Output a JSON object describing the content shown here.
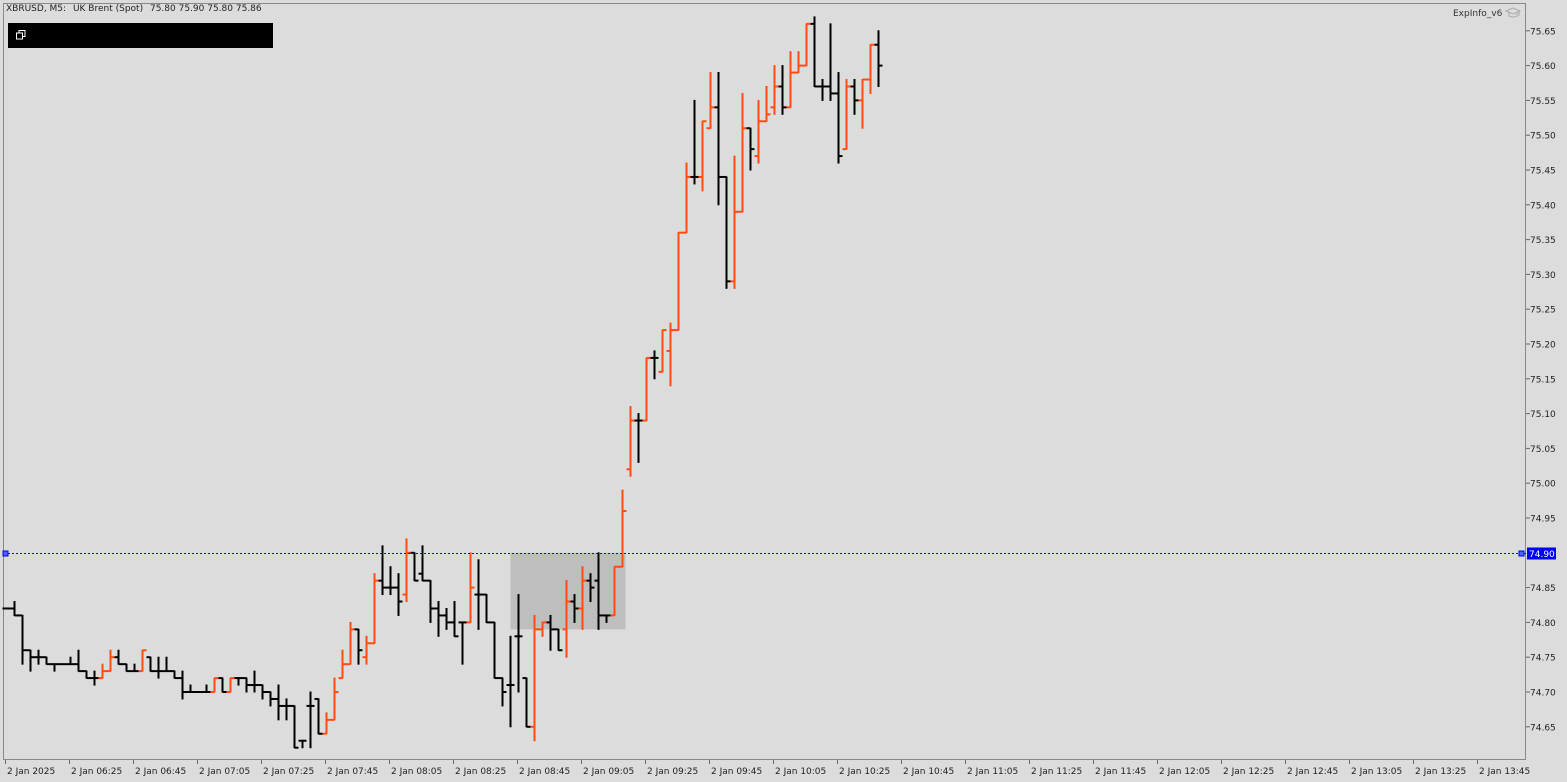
{
  "header": {
    "symbol": "XBRUSD, M5:",
    "description": "UK Brent (Spot)",
    "ohlc": "75.80 75.90 75.80 75.86"
  },
  "indicator": {
    "label": "ExpInfo_v6",
    "icon": "graduation-cap-icon"
  },
  "panel": {
    "icon": "restore-window-icon",
    "background": "#000000"
  },
  "colors": {
    "up": "#ff4a12",
    "down": "#000000",
    "level_line": "#0000ff",
    "level_label_bg": "#0000ff",
    "zone": "#bebebe",
    "background": "#dcdcdc"
  },
  "level": {
    "price": 74.9,
    "label": "74.90"
  },
  "zone": {
    "from_bar": 63,
    "to_bar": 77,
    "top": 74.9,
    "bottom": 74.79
  },
  "chart_data": {
    "type": "ohlc-bar",
    "symbol": "XBRUSD",
    "timeframe": "M5",
    "ylim": [
      74.605,
      75.695
    ],
    "y_ticks": [
      "74.65",
      "74.70",
      "74.75",
      "74.80",
      "74.85",
      "74.90",
      "74.95",
      "75.00",
      "75.05",
      "75.10",
      "75.15",
      "75.20",
      "75.25",
      "75.30",
      "75.35",
      "75.40",
      "75.45",
      "75.50",
      "75.55",
      "75.60",
      "75.65"
    ],
    "x_ticks": [
      "2 Jan 2025",
      "2 Jan 06:25",
      "2 Jan 06:45",
      "2 Jan 07:05",
      "2 Jan 07:25",
      "2 Jan 07:45",
      "2 Jan 08:05",
      "2 Jan 08:25",
      "2 Jan 08:45",
      "2 Jan 09:05",
      "2 Jan 09:25",
      "2 Jan 09:45",
      "2 Jan 10:05",
      "2 Jan 10:25",
      "2 Jan 10:45",
      "2 Jan 11:05",
      "2 Jan 11:25",
      "2 Jan 11:45",
      "2 Jan 12:05",
      "2 Jan 12:25",
      "2 Jan 12:45",
      "2 Jan 13:05",
      "2 Jan 13:25",
      "2 Jan 13:45"
    ],
    "bars": [
      [
        74.82,
        74.82,
        74.82,
        74.82
      ],
      [
        74.82,
        74.83,
        74.81,
        74.81
      ],
      [
        74.81,
        74.81,
        74.74,
        74.76
      ],
      [
        74.76,
        74.76,
        74.73,
        74.75
      ],
      [
        74.75,
        74.76,
        74.74,
        74.75
      ],
      [
        74.75,
        74.75,
        74.74,
        74.74
      ],
      [
        74.74,
        74.74,
        74.73,
        74.74
      ],
      [
        74.74,
        74.74,
        74.74,
        74.74
      ],
      [
        74.74,
        74.75,
        74.74,
        74.74
      ],
      [
        74.74,
        74.76,
        74.73,
        74.73
      ],
      [
        74.73,
        74.73,
        74.72,
        74.72
      ],
      [
        74.72,
        74.73,
        74.71,
        74.72
      ],
      [
        74.72,
        74.74,
        74.72,
        74.73
      ],
      [
        74.73,
        74.76,
        74.73,
        74.75
      ],
      [
        74.75,
        74.76,
        74.74,
        74.74
      ],
      [
        74.74,
        74.74,
        74.73,
        74.73
      ],
      [
        74.73,
        74.74,
        74.73,
        74.73
      ],
      [
        74.73,
        74.76,
        74.73,
        74.76
      ],
      [
        74.75,
        74.75,
        74.73,
        74.73
      ],
      [
        74.73,
        74.75,
        74.72,
        74.73
      ],
      [
        74.73,
        74.75,
        74.73,
        74.73
      ],
      [
        74.73,
        74.73,
        74.72,
        74.72
      ],
      [
        74.72,
        74.73,
        74.69,
        74.7
      ],
      [
        74.7,
        74.71,
        74.7,
        74.7
      ],
      [
        74.7,
        74.7,
        74.7,
        74.7
      ],
      [
        74.7,
        74.71,
        74.7,
        74.7
      ],
      [
        74.7,
        74.72,
        74.7,
        74.72
      ],
      [
        74.72,
        74.72,
        74.7,
        74.7
      ],
      [
        74.7,
        74.72,
        74.7,
        74.72
      ],
      [
        74.72,
        74.72,
        74.71,
        74.72
      ],
      [
        74.72,
        74.72,
        74.7,
        74.71
      ],
      [
        74.71,
        74.73,
        74.7,
        74.71
      ],
      [
        74.71,
        74.71,
        74.69,
        74.7
      ],
      [
        74.7,
        74.7,
        74.68,
        74.69
      ],
      [
        74.69,
        74.71,
        74.66,
        74.68
      ],
      [
        74.68,
        74.69,
        74.66,
        74.68
      ],
      [
        74.68,
        74.68,
        74.62,
        74.62
      ],
      [
        74.63,
        74.63,
        74.62,
        74.63
      ],
      [
        74.68,
        74.7,
        74.62,
        74.68
      ],
      [
        74.69,
        74.69,
        74.64,
        74.64
      ],
      [
        74.64,
        74.67,
        74.64,
        74.66
      ],
      [
        74.66,
        74.72,
        74.66,
        74.7
      ],
      [
        74.72,
        74.76,
        74.72,
        74.74
      ],
      [
        74.74,
        74.8,
        74.74,
        74.79
      ],
      [
        74.79,
        74.79,
        74.74,
        74.76
      ],
      [
        74.75,
        74.78,
        74.74,
        74.77
      ],
      [
        74.77,
        74.87,
        74.77,
        74.86
      ],
      [
        74.86,
        74.91,
        74.84,
        74.85
      ],
      [
        74.85,
        74.88,
        74.84,
        74.85
      ],
      [
        74.85,
        74.87,
        74.81,
        74.83
      ],
      [
        74.84,
        74.92,
        74.83,
        74.9
      ],
      [
        74.9,
        74.9,
        74.86,
        74.86
      ],
      [
        74.87,
        74.91,
        74.86,
        74.86
      ],
      [
        74.86,
        74.86,
        74.8,
        74.82
      ],
      [
        74.82,
        74.83,
        74.78,
        74.81
      ],
      [
        74.81,
        74.82,
        74.79,
        74.8
      ],
      [
        74.8,
        74.83,
        74.78,
        74.78
      ],
      [
        74.8,
        74.8,
        74.74,
        74.8
      ],
      [
        74.8,
        74.9,
        74.8,
        74.85
      ],
      [
        74.84,
        74.89,
        74.79,
        74.84
      ],
      [
        74.84,
        74.84,
        74.8,
        74.8
      ],
      [
        74.8,
        74.8,
        74.72,
        74.72
      ],
      [
        74.72,
        74.72,
        74.68,
        74.7
      ],
      [
        74.71,
        74.78,
        74.65,
        74.71
      ],
      [
        74.78,
        74.84,
        74.7,
        74.78
      ],
      [
        74.72,
        74.72,
        74.65,
        74.65
      ],
      [
        74.65,
        74.81,
        74.63,
        74.79
      ],
      [
        74.79,
        74.8,
        74.78,
        74.8
      ],
      [
        74.8,
        74.81,
        74.76,
        74.79
      ],
      [
        74.79,
        74.79,
        74.76,
        74.76
      ],
      [
        74.79,
        74.86,
        74.75,
        74.83
      ],
      [
        74.83,
        74.84,
        74.8,
        74.82
      ],
      [
        74.82,
        74.88,
        74.79,
        74.86
      ],
      [
        74.86,
        74.87,
        74.83,
        74.85
      ],
      [
        74.86,
        74.9,
        74.79,
        74.81
      ],
      [
        74.81,
        74.81,
        74.8,
        74.81
      ],
      [
        74.81,
        74.88,
        74.81,
        74.88
      ],
      [
        74.88,
        74.99,
        74.88,
        74.96
      ],
      [
        75.02,
        75.11,
        75.01,
        75.09
      ],
      [
        75.09,
        75.1,
        75.03,
        75.09
      ],
      [
        75.09,
        75.18,
        75.09,
        75.18
      ],
      [
        75.18,
        75.19,
        75.15,
        75.18
      ],
      [
        75.16,
        75.22,
        75.16,
        75.22
      ],
      [
        75.19,
        75.23,
        75.14,
        75.22
      ],
      [
        75.22,
        75.36,
        75.22,
        75.36
      ],
      [
        75.36,
        75.46,
        75.36,
        75.44
      ],
      [
        75.44,
        75.55,
        75.43,
        75.44
      ],
      [
        75.44,
        75.52,
        75.42,
        75.52
      ],
      [
        75.51,
        75.59,
        75.51,
        75.54
      ],
      [
        75.54,
        75.59,
        75.4,
        75.44
      ],
      [
        75.44,
        75.44,
        75.28,
        75.29
      ],
      [
        75.29,
        75.47,
        75.28,
        75.39
      ],
      [
        75.39,
        75.56,
        75.39,
        75.51
      ],
      [
        75.51,
        75.51,
        75.45,
        75.48
      ],
      [
        75.47,
        75.55,
        75.46,
        75.52
      ],
      [
        75.52,
        75.57,
        75.52,
        75.53
      ],
      [
        75.54,
        75.6,
        75.53,
        75.57
      ],
      [
        75.57,
        75.6,
        75.53,
        75.54
      ],
      [
        75.54,
        75.62,
        75.54,
        75.59
      ],
      [
        75.59,
        75.62,
        75.59,
        75.6
      ],
      [
        75.6,
        75.66,
        75.6,
        75.66
      ],
      [
        75.66,
        75.67,
        75.57,
        75.57
      ],
      [
        75.57,
        75.58,
        75.55,
        75.57
      ],
      [
        75.57,
        75.66,
        75.55,
        75.56
      ],
      [
        75.56,
        75.59,
        75.46,
        75.47
      ],
      [
        75.48,
        75.58,
        75.48,
        75.57
      ],
      [
        75.57,
        75.58,
        75.53,
        75.55
      ],
      [
        75.55,
        75.58,
        75.51,
        75.58
      ],
      [
        75.58,
        75.63,
        75.56,
        75.63
      ],
      [
        75.63,
        75.65,
        75.57,
        75.6
      ]
    ]
  }
}
